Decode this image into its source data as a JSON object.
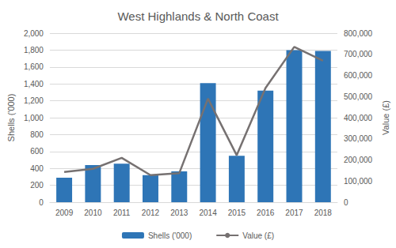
{
  "chart_data": {
    "type": "bar",
    "title": "West Highlands & North Coast",
    "categories": [
      "2009",
      "2010",
      "2011",
      "2012",
      "2013",
      "2014",
      "2015",
      "2016",
      "2017",
      "2018"
    ],
    "series": [
      {
        "name": "Shells ('000)",
        "type": "bar",
        "color": "#2e75b6",
        "values": [
          290,
          440,
          455,
          320,
          365,
          1410,
          550,
          1320,
          1800,
          1790
        ]
      },
      {
        "name": "Value (£)",
        "type": "line",
        "color": "#767171",
        "axis": "y2",
        "values": [
          143000,
          158000,
          210000,
          128000,
          137000,
          490000,
          222000,
          540000,
          735000,
          670000
        ]
      }
    ],
    "ylabel": "Shells ('000)",
    "y2label": "Value (£)",
    "ylim": [
      0,
      2000
    ],
    "yticks": [
      0,
      200,
      400,
      600,
      800,
      {
        "value": 1000,
        "label": "1,000"
      },
      {
        "value": 1200,
        "label": "1,200"
      },
      {
        "value": 1400,
        "label": "1,400"
      },
      {
        "value": 1600,
        "label": "1,600"
      },
      {
        "value": 1800,
        "label": "1,800"
      },
      {
        "value": 2000,
        "label": "2,000"
      }
    ],
    "y2lim": [
      0,
      800000
    ],
    "y2ticks": [
      0,
      {
        "value": 100000,
        "label": "100,000"
      },
      {
        "value": 200000,
        "label": "200,000"
      },
      {
        "value": 300000,
        "label": "300,000"
      },
      {
        "value": 400000,
        "label": "400,000"
      },
      {
        "value": 500000,
        "label": "500,000"
      },
      {
        "value": 600000,
        "label": "600,000"
      },
      {
        "value": 700000,
        "label": "700,000"
      },
      {
        "value": 800000,
        "label": "800,000"
      }
    ],
    "legend": "bottom",
    "grid": true
  }
}
